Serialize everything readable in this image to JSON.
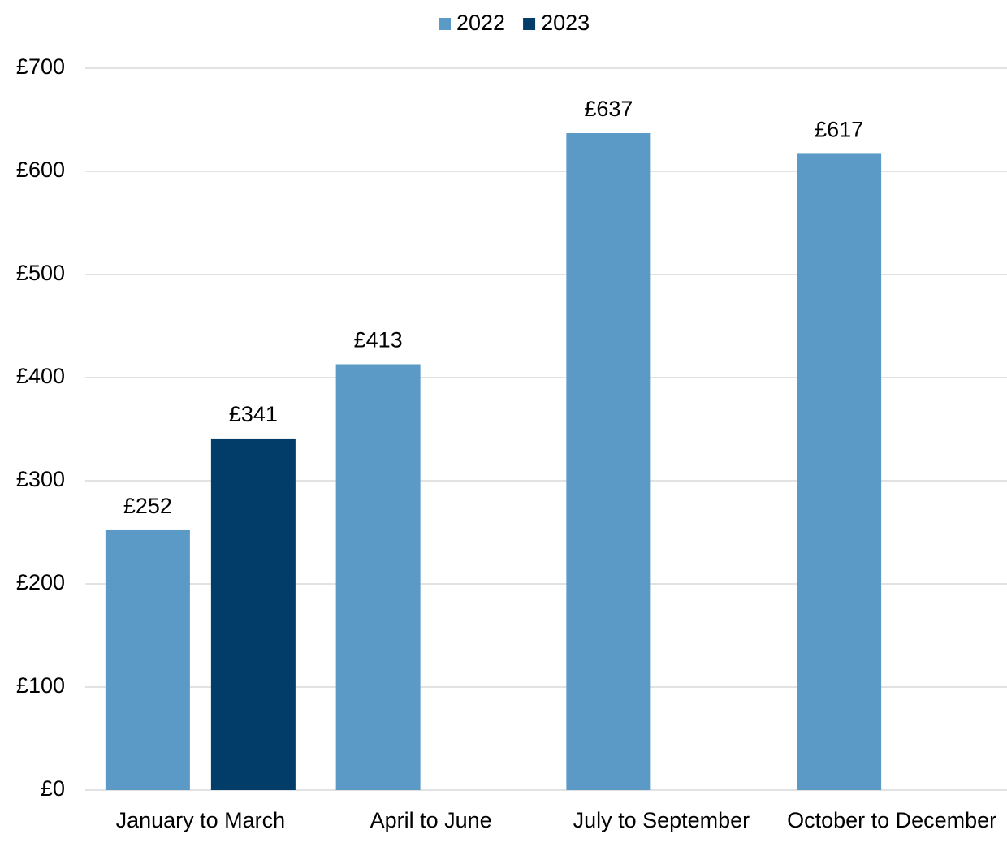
{
  "chart_data": {
    "type": "bar",
    "categories": [
      "January to March",
      "April to June",
      "July to September",
      "October to December"
    ],
    "series": [
      {
        "name": "2022",
        "color": "#5b9ac7",
        "values": [
          252,
          413,
          637,
          617
        ],
        "value_labels": [
          "£252",
          "£413",
          "£637",
          "£617"
        ]
      },
      {
        "name": "2023",
        "color": "#023c68",
        "values": [
          341,
          null,
          null,
          null
        ],
        "value_labels": [
          "£341",
          null,
          null,
          null
        ]
      }
    ],
    "ylim": [
      0,
      700
    ],
    "yticks": [
      {
        "value": 0,
        "label": "£0"
      },
      {
        "value": 100,
        "label": "£100"
      },
      {
        "value": 200,
        "label": "£200"
      },
      {
        "value": 300,
        "label": "£300"
      },
      {
        "value": 400,
        "label": "£400"
      },
      {
        "value": 500,
        "label": "£500"
      },
      {
        "value": 600,
        "label": "£600"
      },
      {
        "value": 700,
        "label": "£700"
      }
    ],
    "grid": true,
    "legend": "top"
  }
}
